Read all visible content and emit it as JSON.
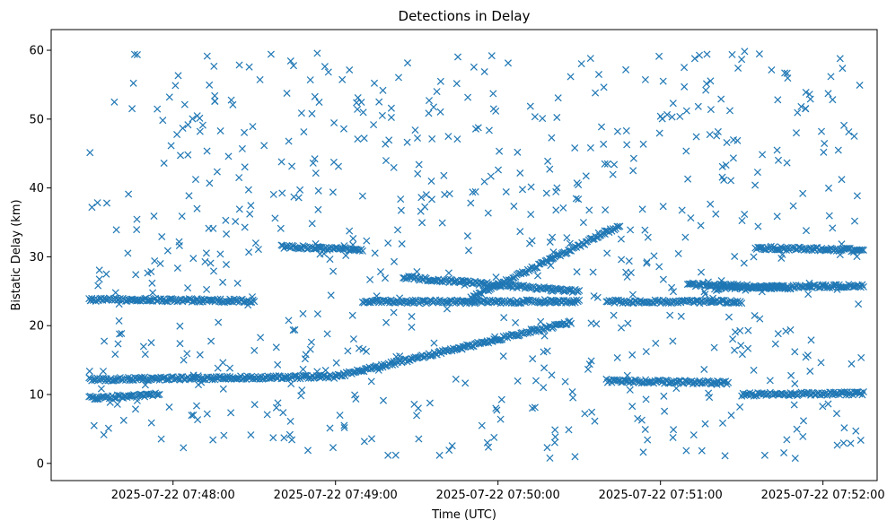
{
  "chart_data": {
    "type": "scatter",
    "title": "Detections in Delay",
    "xlabel": "Time (UTC)",
    "ylabel": "Bistatic Delay (km)",
    "x_ticks": [
      {
        "time": "07:48:00",
        "label": "2025-07-22 07:48:00"
      },
      {
        "time": "07:49:00",
        "label": "2025-07-22 07:49:00"
      },
      {
        "time": "07:50:00",
        "label": "2025-07-22 07:50:00"
      },
      {
        "time": "07:51:00",
        "label": "2025-07-22 07:51:00"
      },
      {
        "time": "07:52:00",
        "label": "2025-07-22 07:52:00"
      }
    ],
    "y_ticks": [
      0,
      10,
      20,
      30,
      40,
      50,
      60
    ],
    "xlim": [
      "07:47:15",
      "07:52:20"
    ],
    "ylim": [
      -2.5,
      63
    ],
    "grid": false,
    "marker": "x",
    "color": "#1f77b4",
    "tracks": [
      {
        "start": "07:47:29",
        "end": "07:49:00",
        "delay_start": 12.2,
        "delay_end": 12.6
      },
      {
        "start": "07:49:00",
        "end": "07:50:27",
        "delay_start": 12.6,
        "delay_end": 20.5
      },
      {
        "start": "07:47:29",
        "end": "07:48:30",
        "delay_start": 23.8,
        "delay_end": 23.6
      },
      {
        "start": "07:48:40",
        "end": "07:49:10",
        "delay_start": 31.5,
        "delay_end": 31.0
      },
      {
        "start": "07:49:10",
        "end": "07:50:30",
        "delay_start": 23.5,
        "delay_end": 23.5
      },
      {
        "start": "07:49:25",
        "end": "07:50:30",
        "delay_start": 27.0,
        "delay_end": 25.0
      },
      {
        "start": "07:49:50",
        "end": "07:50:45",
        "delay_start": 24.0,
        "delay_end": 34.5
      },
      {
        "start": "07:50:40",
        "end": "07:51:30",
        "delay_start": 23.5,
        "delay_end": 23.5
      },
      {
        "start": "07:50:40",
        "end": "07:51:25",
        "delay_start": 12.0,
        "delay_end": 11.7
      },
      {
        "start": "07:51:10",
        "end": "07:51:48",
        "delay_start": 26.0,
        "delay_end": 25.5
      },
      {
        "start": "07:51:30",
        "end": "07:52:15",
        "delay_start": 10.0,
        "delay_end": 10.2
      },
      {
        "start": "07:51:35",
        "end": "07:52:15",
        "delay_start": 31.3,
        "delay_end": 31.0
      },
      {
        "start": "07:51:20",
        "end": "07:52:15",
        "delay_start": 25.5,
        "delay_end": 25.8
      },
      {
        "start": "07:47:29",
        "end": "07:47:55",
        "delay_start": 9.5,
        "delay_end": 10.0
      }
    ],
    "scatter_range": {
      "time_start": "07:47:29",
      "time_end": "07:52:15",
      "delay_min": 0.5,
      "delay_max": 60
    },
    "scatter_count": 700
  }
}
